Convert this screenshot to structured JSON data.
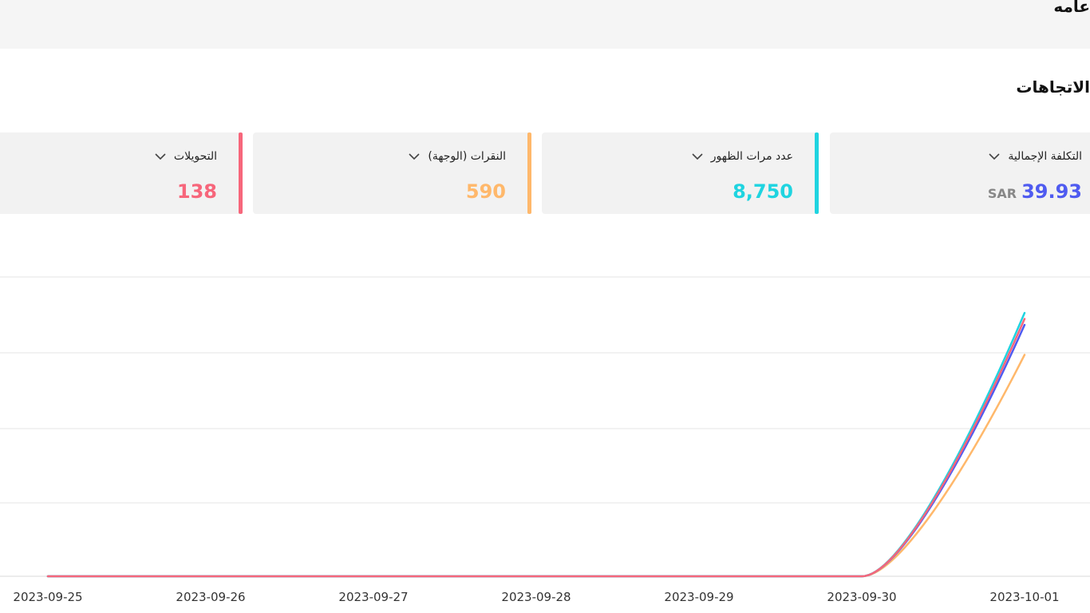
{
  "header": {
    "title": "عامه"
  },
  "section": {
    "title": "الاتجاهات"
  },
  "metrics": [
    {
      "label": "التكلفة الإجمالية",
      "value": "39.93",
      "currency": "SAR",
      "color": "#4f5bf0",
      "icon": "chevron-down-icon"
    },
    {
      "label": "عدد مرات الظهور",
      "value": "8,750",
      "color": "#1fd4e0",
      "icon": "chevron-down-icon"
    },
    {
      "label": "النقرات (الوجهة)",
      "value": "590",
      "color": "#ffb86b",
      "icon": "chevron-down-icon"
    },
    {
      "label": "التحويلات",
      "value": "138",
      "color": "#f7667b",
      "icon": "chevron-down-icon"
    }
  ],
  "chart_data": {
    "type": "line",
    "x": [
      "2023-09-25",
      "2023-09-26",
      "2023-09-27",
      "2023-09-28",
      "2023-09-29",
      "2023-09-30",
      "2023-10-01"
    ],
    "normalized": true,
    "grid": true,
    "series": [
      {
        "color": "#4f5bf0",
        "values": [
          0,
          0,
          0,
          0,
          0,
          0,
          0.84
        ]
      },
      {
        "color": "#1fd4e0",
        "values": [
          0,
          0,
          0,
          0,
          0,
          0,
          0.88
        ]
      },
      {
        "color": "#ffb86b",
        "values": [
          0,
          0,
          0,
          0,
          0,
          0,
          0.74
        ]
      },
      {
        "color": "#f7667b",
        "values": [
          0,
          0,
          0,
          0,
          0,
          0,
          0.86
        ]
      }
    ]
  }
}
